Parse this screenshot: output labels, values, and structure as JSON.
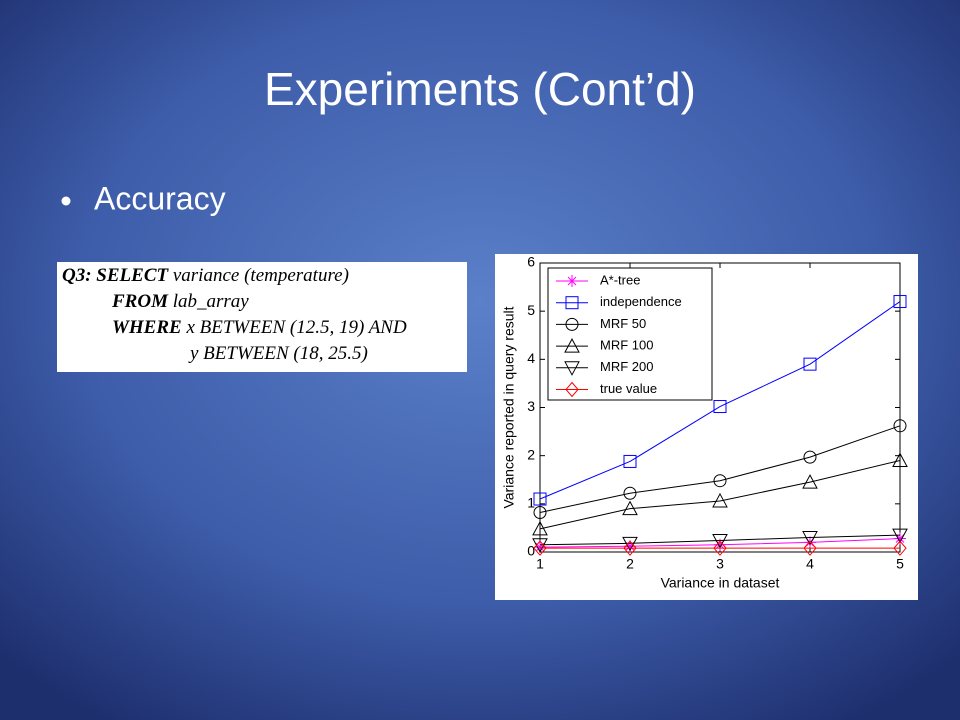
{
  "slide": {
    "title": "Experiments (Cont’d)",
    "bullets": [
      "Accuracy"
    ],
    "query": [
      {
        "keyword": "Q3: SELECT",
        "text": "variance (temperature)"
      },
      {
        "keyword": "FROM",
        "text": "lab_array"
      },
      {
        "keyword": "WHERE",
        "text": "x BETWEEN (12.5, 19) AND"
      },
      {
        "text": "y BETWEEN (18, 25.5)"
      }
    ]
  },
  "chart_data": {
    "type": "line",
    "x": [
      1,
      2,
      3,
      4,
      5
    ],
    "xlabel": "Variance in dataset",
    "ylabel": "Variance reported in query result",
    "xlim": [
      1,
      5
    ],
    "xticks": [
      1,
      2,
      3,
      4,
      5
    ],
    "ylim": [
      0,
      6
    ],
    "yticks": [
      0,
      1,
      2,
      3,
      4,
      5,
      6
    ],
    "legend": "upper-left",
    "series": [
      {
        "name": "A*-tree",
        "color": "#ff00ff",
        "marker": "star",
        "values": [
          0.1,
          0.12,
          0.15,
          0.2,
          0.28
        ]
      },
      {
        "name": "independence",
        "color": "#0000ff",
        "marker": "square",
        "values": [
          1.1,
          1.88,
          3.02,
          3.9,
          5.2
        ]
      },
      {
        "name": "MRF 50",
        "color": "#000000",
        "marker": "circle",
        "values": [
          0.82,
          1.22,
          1.48,
          1.97,
          2.62
        ]
      },
      {
        "name": "MRF 100",
        "color": "#000000",
        "marker": "triangle-up",
        "values": [
          0.48,
          0.9,
          1.06,
          1.45,
          1.9
        ]
      },
      {
        "name": "MRF 200",
        "color": "#000000",
        "marker": "triangle-down",
        "values": [
          0.15,
          0.18,
          0.24,
          0.3,
          0.35
        ]
      },
      {
        "name": "true value",
        "color": "#ff0000",
        "marker": "diamond",
        "values": [
          0.08,
          0.08,
          0.08,
          0.08,
          0.08
        ]
      }
    ]
  }
}
